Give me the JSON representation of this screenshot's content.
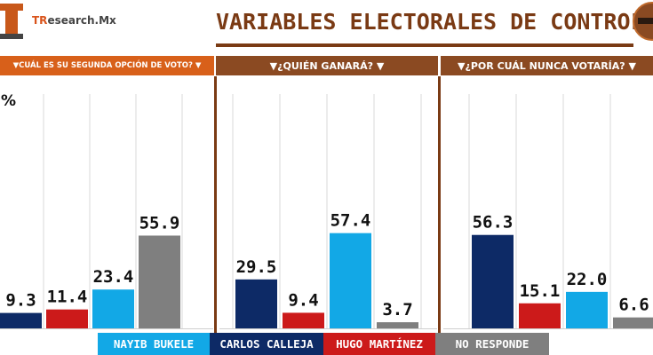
{
  "header": {
    "brand_prefix": "TR",
    "brand_rest": "esearch.Mx",
    "title": "VARIABLES ELECTORALES DE CONTROL"
  },
  "chart_data": [
    {
      "type": "bar",
      "title": "▼CUÁL ES SU SEGUNDA OPCIÓN DE VOTO? ▼",
      "ylabel": "%",
      "categories": [
        "CARLOS CALLEJA",
        "HUGO MARTÍNEZ",
        "NAYIB BUKELE",
        "NO RESPONDE"
      ],
      "values": [
        9.3,
        11.4,
        23.4,
        55.9
      ],
      "value_labels": [
        "9.3",
        "11.4",
        "23.4",
        "55.9"
      ],
      "colors": [
        "#0d2a66",
        "#cc1a1a",
        "#12a8e6",
        "#7f7f7f"
      ]
    },
    {
      "type": "bar",
      "title": "▼¿QUIÉN GANARÁ? ▼",
      "categories": [
        "CARLOS CALLEJA",
        "HUGO MARTÍNEZ",
        "NAYIB BUKELE",
        "NO RESPONDE"
      ],
      "values": [
        29.5,
        9.4,
        57.4,
        3.7
      ],
      "value_labels": [
        "29.5",
        "9.4",
        "57.4",
        "3.7"
      ],
      "colors": [
        "#0d2a66",
        "#cc1a1a",
        "#12a8e6",
        "#7f7f7f"
      ]
    },
    {
      "type": "bar",
      "title": "▼¿POR CUÁL NUNCA VOTARÍA? ▼",
      "categories": [
        "CARLOS CALLEJA",
        "HUGO MARTÍNEZ",
        "NAYIB BUKELE",
        "NO RESPONDE"
      ],
      "values": [
        56.3,
        15.1,
        22.0,
        6.6
      ],
      "value_labels": [
        "56.3",
        "15.1",
        "22.0",
        "6.6"
      ],
      "colors": [
        "#0d2a66",
        "#cc1a1a",
        "#12a8e6",
        "#7f7f7f"
      ]
    }
  ],
  "legend": [
    {
      "label": "NAYIB BUKELE",
      "color": "#12a8e6"
    },
    {
      "label": "CARLOS CALLEJA",
      "color": "#0d2a66"
    },
    {
      "label": "HUGO MARTÍNEZ",
      "color": "#cc1a1a"
    },
    {
      "label": "NO RESPONDE",
      "color": "#7f7f7f"
    }
  ]
}
